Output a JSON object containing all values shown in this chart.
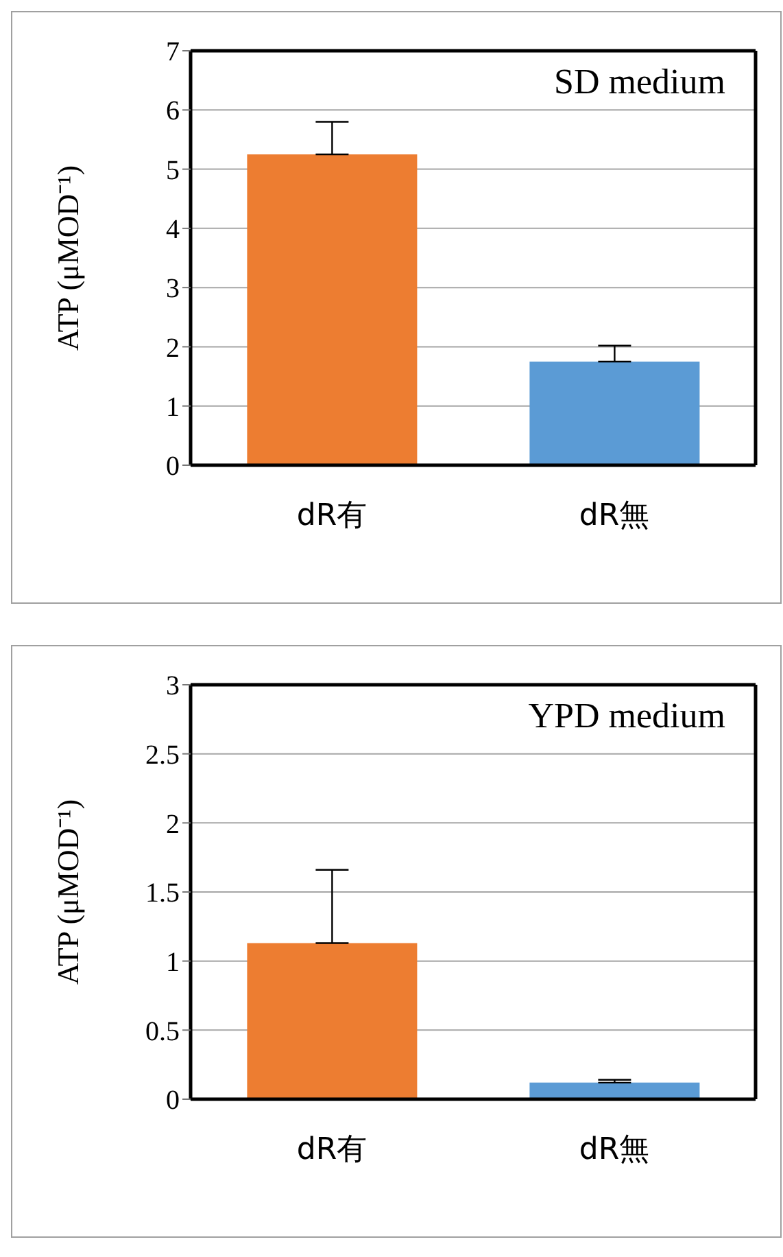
{
  "chart_data": [
    {
      "type": "bar",
      "title": "SD medium",
      "ylabel": "ATP (μMOD⁻¹)",
      "categories": [
        "dR有",
        "dR無"
      ],
      "values": [
        5.25,
        1.75
      ],
      "colors": [
        "#ed7d31",
        "#5b9bd5"
      ],
      "errors": [
        [
          5.25,
          5.8
        ],
        [
          1.75,
          2.02
        ]
      ],
      "ylim": [
        0,
        7
      ],
      "yticks": [
        0,
        1,
        2,
        3,
        4,
        5,
        6,
        7
      ],
      "grid": "y",
      "legend": false
    },
    {
      "type": "bar",
      "title": "YPD medium",
      "ylabel": "ATP (μMOD⁻¹)",
      "categories": [
        "dR有",
        "dR無"
      ],
      "values": [
        1.13,
        0.12
      ],
      "colors": [
        "#ed7d31",
        "#5b9bd5"
      ],
      "errors": [
        [
          1.13,
          1.66
        ],
        [
          0.12,
          0.14
        ]
      ],
      "ylim": [
        0,
        3
      ],
      "yticks": [
        0,
        0.5,
        1,
        1.5,
        2,
        2.5,
        3
      ],
      "grid": "y",
      "legend": false
    }
  ]
}
